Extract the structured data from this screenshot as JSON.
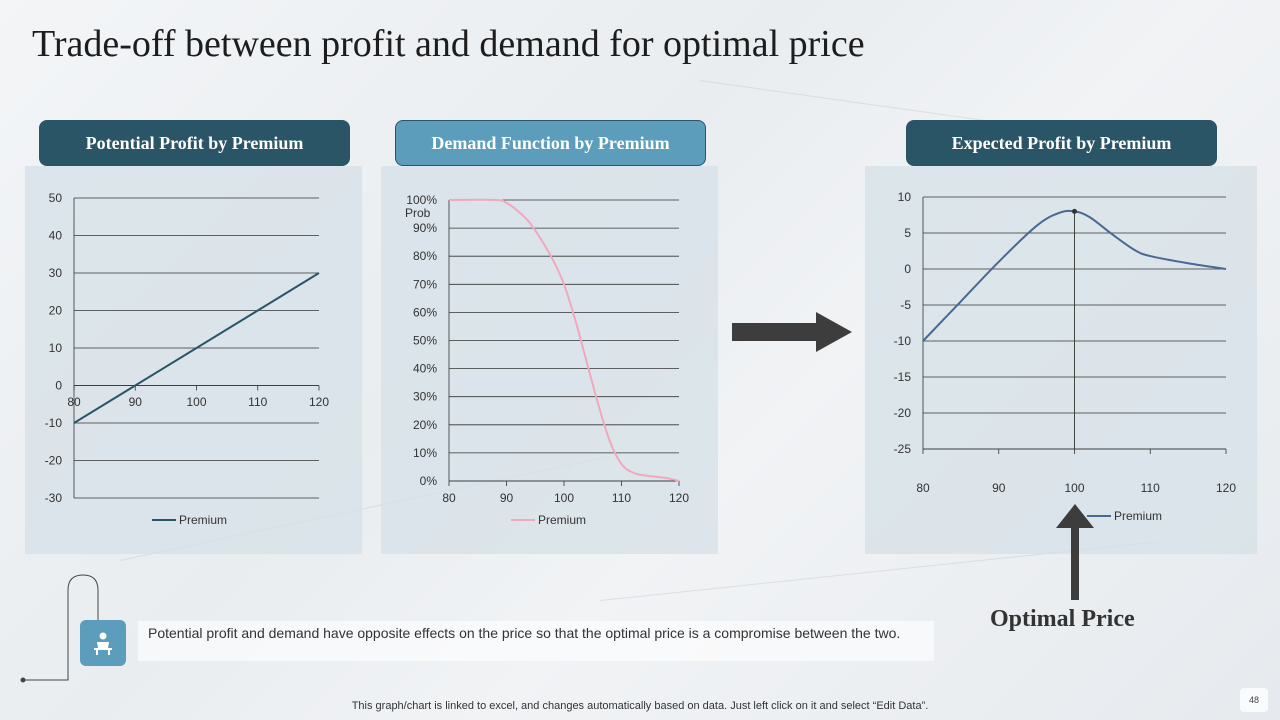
{
  "title": "Trade-off between profit and demand for optimal price",
  "headers": {
    "profit": "Potential Profit by Premium",
    "demand": "Demand Function by Premium",
    "expected": "Expected Profit by Premium"
  },
  "colors": {
    "dark_header": "#2a5566",
    "light_header": "#5b9dba",
    "profit_line": "#2a5566",
    "demand_line": "#f2a7bd",
    "expected_line": "#4a6894",
    "arrow": "#3d3d3d"
  },
  "chart_data": [
    {
      "type": "line",
      "title": "Potential Profit by Premium",
      "categories": [
        "80",
        "90",
        "100",
        "110",
        "120"
      ],
      "series": [
        {
          "name": "Premium",
          "x": [
            80,
            120
          ],
          "values": [
            -10,
            30
          ]
        }
      ],
      "xlim": [
        80,
        120
      ],
      "ylim": [
        -30,
        50
      ],
      "yticks": [
        -30,
        -20,
        -10,
        0,
        10,
        20,
        30,
        40,
        50
      ],
      "ytick_labels": [
        "-30",
        "-20",
        "-10",
        "0",
        "10",
        "20",
        "30",
        "40",
        "50"
      ],
      "legend": "bottom"
    },
    {
      "type": "line",
      "title": "Demand Function by Premium",
      "ylabel": "Prob",
      "categories": [
        "80",
        "90",
        "100",
        "110",
        "120"
      ],
      "series": [
        {
          "name": "Premium",
          "x": [
            80,
            88,
            90,
            92,
            94,
            96,
            98,
            100,
            102,
            104,
            106,
            108,
            110,
            112,
            114,
            116,
            118,
            120
          ],
          "values": [
            1.0,
            1.0,
            0.99,
            0.96,
            0.92,
            0.86,
            0.79,
            0.7,
            0.57,
            0.42,
            0.27,
            0.14,
            0.06,
            0.03,
            0.02,
            0.015,
            0.01,
            0.0
          ]
        }
      ],
      "xlim": [
        80,
        120
      ],
      "ylim": [
        0,
        1
      ],
      "yticks": [
        0,
        0.1,
        0.2,
        0.3,
        0.4,
        0.5,
        0.6,
        0.7,
        0.8,
        0.9,
        1.0
      ],
      "ytick_labels": [
        "0%",
        "10%",
        "20%",
        "30%",
        "40%",
        "50%",
        "60%",
        "70%",
        "80%",
        "90%",
        "100%"
      ],
      "legend": "bottom"
    },
    {
      "type": "line",
      "title": "Expected Profit by Premium",
      "categories": [
        "80",
        "90",
        "100",
        "110",
        "120"
      ],
      "series": [
        {
          "name": "Premium",
          "x": [
            80,
            85,
            90,
            95,
            98,
            100,
            102,
            105,
            108,
            110,
            115,
            120
          ],
          "values": [
            -10,
            -4.5,
            1,
            6,
            7.8,
            8,
            7.2,
            4.8,
            2.6,
            1.8,
            0.8,
            0
          ]
        }
      ],
      "marker": {
        "x": 100,
        "y": 8
      },
      "xlim": [
        80,
        120
      ],
      "ylim": [
        -25,
        10
      ],
      "yticks": [
        -25,
        -20,
        -15,
        -10,
        -5,
        0,
        5,
        10
      ],
      "ytick_labels": [
        "-25",
        "-20",
        "-15",
        "-10",
        "-5",
        "0",
        "5",
        "10"
      ],
      "legend": "bottom"
    }
  ],
  "optimal_label": "Optimal Price",
  "note_text": "Potential profit and demand have opposite effects on the price so that the optimal price is a compromise between  the two.",
  "footer": "This graph/chart is linked to excel, and changes automatically based on data. Just left click on it and select “Edit Data”.",
  "page_number": "48"
}
